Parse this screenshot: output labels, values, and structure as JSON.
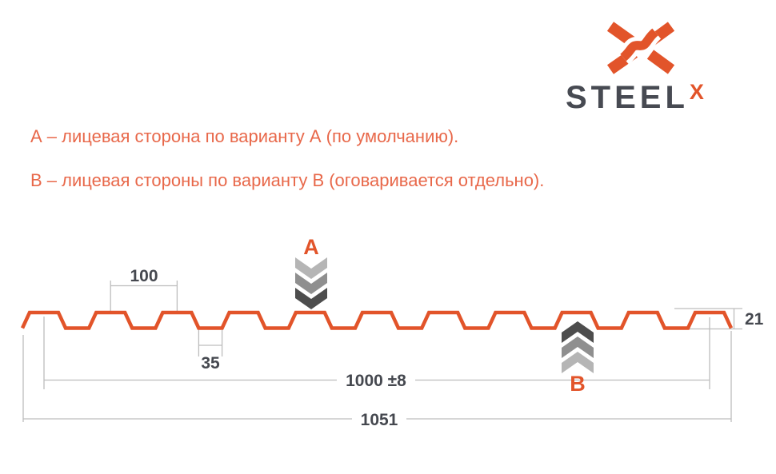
{
  "brand": {
    "name": "STEEL",
    "sup": "X"
  },
  "colors": {
    "accent_orange": "#E2542A",
    "note_orange": "#E8684A",
    "dark_text": "#45484F",
    "dim_line_gray": "#BDBDBD",
    "chevron_light": "#B5B5B5",
    "chevron_mid": "#8F8F8F",
    "chevron_dark": "#4D4D4D"
  },
  "notes": {
    "line_a": "А – лицевая сторона по варианту А (по умолчанию).",
    "line_b": "В – лицевая стороны по варианту В (оговаривается отдельно)."
  },
  "diagram": {
    "marker_a_label": "А",
    "marker_b_label": "В",
    "dimensions": {
      "rib_pitch": "100",
      "valley_width": "35",
      "coverage_width": "1000 ±8",
      "overall_width": "1051",
      "profile_height": "21"
    }
  }
}
